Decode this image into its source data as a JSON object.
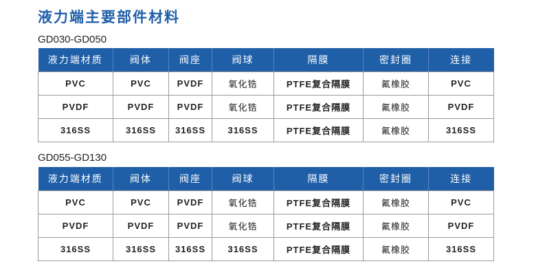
{
  "title": "液力端主要部件材料",
  "colors": {
    "header_bg": "#1f5fa8",
    "title": "#1f5fa8"
  },
  "tables": [
    {
      "model": "GD030-GD050",
      "headers": [
        "液力端材质",
        "阀体",
        "阀座",
        "阀球",
        "隔膜",
        "密封圈",
        "连接"
      ],
      "rows": [
        [
          "PVC",
          "PVC",
          "PVDF",
          "氧化锆",
          "PTFE复合隔膜",
          "氟橡胶",
          "PVC"
        ],
        [
          "PVDF",
          "PVDF",
          "PVDF",
          "氧化锆",
          "PTFE复合隔膜",
          "氟橡胶",
          "PVDF"
        ],
        [
          "316SS",
          "316SS",
          "316SS",
          "316SS",
          "PTFE复合隔膜",
          "氟橡胶",
          "316SS"
        ]
      ]
    },
    {
      "model": "GD055-GD130",
      "headers": [
        "液力端材质",
        "阀体",
        "阀座",
        "阀球",
        "隔膜",
        "密封圈",
        "连接"
      ],
      "rows": [
        [
          "PVC",
          "PVC",
          "PVDF",
          "氧化锆",
          "PTFE复合隔膜",
          "氟橡胶",
          "PVC"
        ],
        [
          "PVDF",
          "PVDF",
          "PVDF",
          "氧化锆",
          "PTFE复合隔膜",
          "氟橡胶",
          "PVDF"
        ],
        [
          "316SS",
          "316SS",
          "316SS",
          "316SS",
          "PTFE复合隔膜",
          "氟橡胶",
          "316SS"
        ]
      ]
    }
  ]
}
